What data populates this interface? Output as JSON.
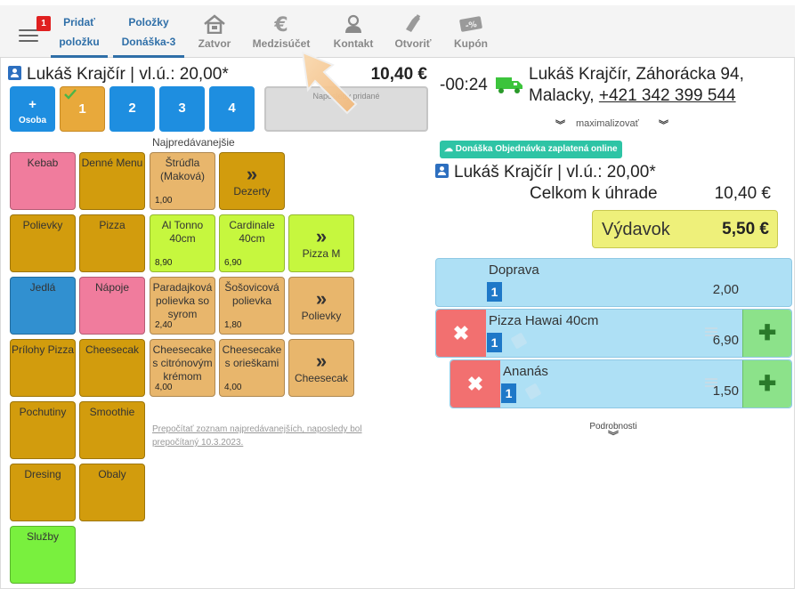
{
  "header": {
    "notification_count": "1",
    "nav": [
      {
        "line1": "Pridať",
        "line2": "položku",
        "icon": null
      },
      {
        "line1": "Položky",
        "line2": "Donáška-3",
        "icon": null
      },
      {
        "line1": "Zatvor",
        "icon": "home-icon"
      },
      {
        "line1": "Medzisúčet",
        "icon": "euro-icon"
      },
      {
        "line1": "Kontakt",
        "icon": "person-icon"
      },
      {
        "line1": "Otvoriť",
        "icon": "bottle-icon"
      },
      {
        "line1": "Kupón",
        "icon": "coupon-icon"
      }
    ]
  },
  "left": {
    "customer": "Lukáš Krajčír | vl.ú.: 20,00*",
    "total": "10,40 €",
    "seats": [
      {
        "top": "+",
        "bottom": "Osoba"
      },
      {
        "label": "1",
        "selected": true
      },
      {
        "label": "2"
      },
      {
        "label": "3"
      },
      {
        "label": "4"
      }
    ],
    "last_added_label": "Naposledy pridané",
    "section_title": "Najpredávanejšie",
    "categories": [
      {
        "label": "Kebab"
      },
      {
        "label": "Denné Menu"
      },
      {
        "label": "Polievky"
      },
      {
        "label": "Pizza"
      },
      {
        "label": "Jedlá"
      },
      {
        "label": "Nápoje"
      },
      {
        "label": "Prílohy Pizza"
      },
      {
        "label": "Cheesecak"
      },
      {
        "label": "Pochutiny"
      },
      {
        "label": "Smoothie"
      },
      {
        "label": "Dresing"
      },
      {
        "label": "Obaly"
      },
      {
        "label": "Služby"
      }
    ],
    "products": [
      {
        "label": "Štrúďla (Maková)",
        "price": "1,00"
      },
      {
        "label": "Al Tonno 40cm",
        "price": "8,90"
      },
      {
        "label": "Cardinale 40cm",
        "price": "6,90"
      },
      {
        "label": "Paradajková polievka so syrom",
        "price": "2,40"
      },
      {
        "label": "Šošovicová polievka",
        "price": "1,80"
      },
      {
        "label": "Cheesecake s citrónovým krémom",
        "price": "4,00"
      },
      {
        "label": "Cheesecake s orieškami",
        "price": "4,00"
      }
    ],
    "more": [
      {
        "arrow": "»",
        "label": "Dezerty"
      },
      {
        "arrow": "»",
        "label": "Pizza M"
      },
      {
        "arrow": "»",
        "label": "Polievky"
      },
      {
        "arrow": "»",
        "label": "Cheesecak"
      }
    ],
    "recalc_note": "Prepočítať zoznam najpredávanejších, naposledy bol prepočítaný 10.3.2023."
  },
  "right": {
    "time": "-00:24",
    "address_line1": "Lukáš Krajčír, Záhorácka 94,",
    "address_line2_prefix": "Malacky, ",
    "phone": "+421 342 399 544",
    "maximize_label": "maximalizovať",
    "paid_badge": "Donáška Objednávka zaplatená online",
    "customer": "Lukáš Krajčír | vl.ú.: 20,00*",
    "due_label": "Celkom k úhrade",
    "due_value": "10,40 €",
    "expense_label": "Výdavok",
    "expense_value": "5,50 €",
    "order_items": [
      {
        "name": "Doprava",
        "qty": "1",
        "price": "2,00"
      },
      {
        "name": "Pizza Hawai 40cm",
        "qty": "1",
        "price": "6,90"
      },
      {
        "name": "Ananás",
        "qty": "1",
        "price": "1,50"
      }
    ],
    "details_label": "Podrobnosti"
  },
  "colors": {
    "accent": "#2f6fa8",
    "seat_blue": "#1e8ee0",
    "seat_selected": "#e8a93b",
    "order_row": "#aee0f5",
    "delete": "#f27070",
    "add": "#8ce28a",
    "expense": "#eef07a",
    "badge": "#2ec4a5"
  }
}
